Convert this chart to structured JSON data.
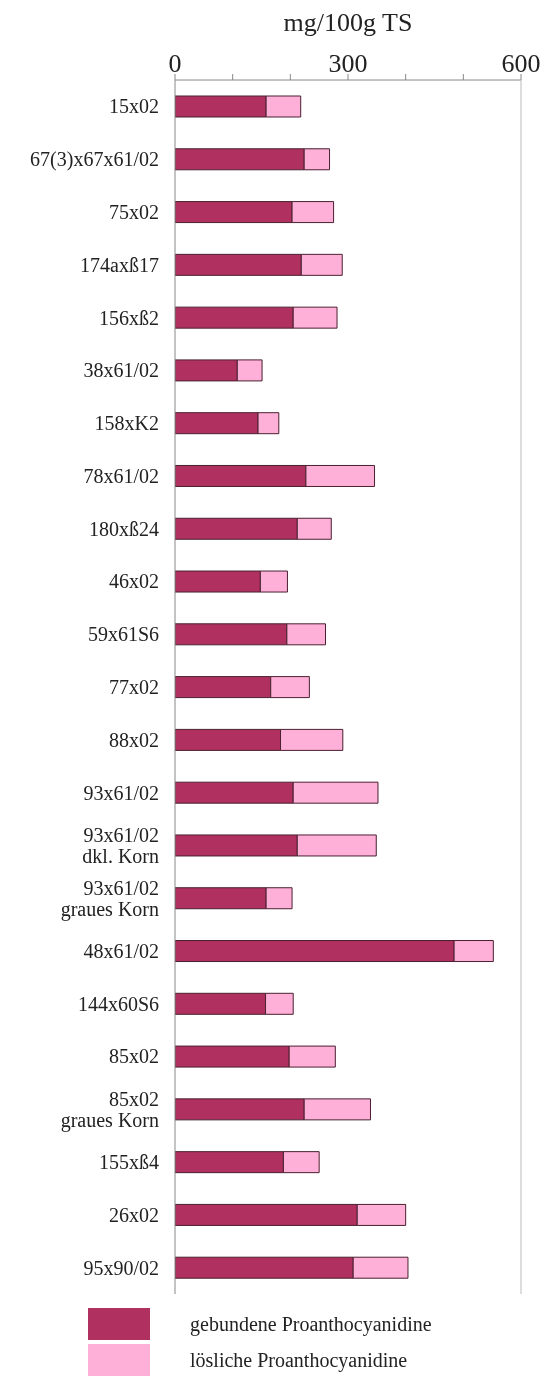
{
  "chart_data": {
    "type": "bar",
    "orientation": "horizontal",
    "stacked": true,
    "xlabel": "mg/100g TS",
    "categories": [
      "15x02",
      "67(3)x67x61/02",
      "75x02",
      "174axß17",
      "156xß2",
      "38x61/02",
      "158xK2",
      "78x61/02",
      "180xß24",
      "46x02",
      "59x61S6",
      "77x02",
      "88x02",
      "93x61/02",
      "93x61/02\ndkl. Korn",
      "93x61/02\ngraues Korn",
      "48x61/02",
      "144x60S6",
      "85x02",
      "85x02\ngraues Korn",
      "155xß4",
      "26x02",
      "95x90/02"
    ],
    "series": [
      {
        "name": "gebundene Proanthocyanidine",
        "color": "#b03060",
        "values": [
          158,
          224,
          203,
          219,
          205,
          108,
          144,
          227,
          212,
          148,
          194,
          166,
          183,
          205,
          212,
          158,
          484,
          157,
          198,
          224,
          188,
          316,
          309
        ]
      },
      {
        "name": "lösliche Proanthocyanidine",
        "color": "#ffb0d8",
        "values": [
          60,
          44,
          72,
          71,
          76,
          43,
          36,
          119,
          59,
          47,
          67,
          67,
          108,
          147,
          137,
          45,
          68,
          48,
          80,
          115,
          62,
          84,
          95
        ]
      }
    ],
    "xlim": [
      0,
      600
    ],
    "xticks": [
      0,
      {
        "value": 100,
        "label": null
      },
      {
        "value": 200,
        "label": null
      },
      300,
      {
        "value": 400,
        "label": null
      },
      {
        "value": 500,
        "label": null
      },
      600
    ],
    "legend": "bottom"
  }
}
